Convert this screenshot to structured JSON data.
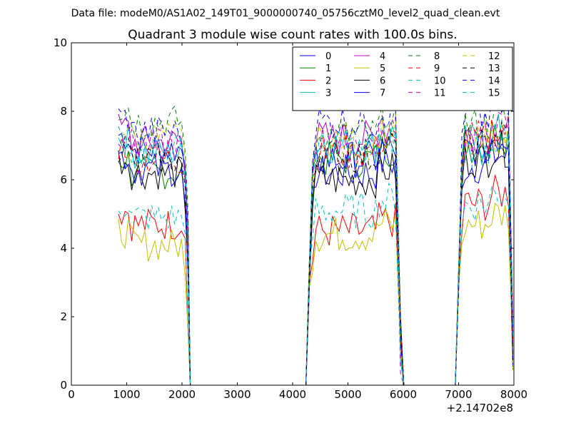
{
  "chart_data": {
    "type": "line",
    "suptitle": "Data file: modeM0/AS1A02_149T01_9000000740_05756cztM0_level2_quad_clean.evt",
    "title": "Quadrant 3 module wise count rates with 100.0s bins.",
    "xlabel": "",
    "ylabel": "",
    "xlim": [
      0,
      8000
    ],
    "ylim": [
      0,
      10
    ],
    "x_offset_label": "+2.14702e8",
    "x_ticks": [
      0,
      1000,
      2000,
      3000,
      4000,
      5000,
      6000,
      7000,
      8000
    ],
    "x_tick_labels": [
      "0",
      "1000",
      "2000",
      "3000",
      "4000",
      "5000",
      "6000",
      "7000",
      "8000"
    ],
    "y_ticks": [
      0,
      2,
      4,
      6,
      8,
      10
    ],
    "y_tick_labels": [
      "0",
      "2",
      "4",
      "6",
      "8",
      "10"
    ],
    "legend_position": "top-right",
    "segments": [
      {
        "start": 850,
        "end": 2150
      },
      {
        "start": 4300,
        "end": 5950
      },
      {
        "start": 7000,
        "end": 7980
      }
    ],
    "series": [
      {
        "name": "0",
        "color": "#0000ff",
        "style": "solid",
        "levels": [
          6.9,
          6.2,
          6.4
        ]
      },
      {
        "name": "1",
        "color": "#008000",
        "style": "solid",
        "levels": [
          6.2,
          6.6,
          7.0
        ]
      },
      {
        "name": "2",
        "color": "#ff0000",
        "style": "solid",
        "levels": [
          4.7,
          4.5,
          5.3
        ]
      },
      {
        "name": "3",
        "color": "#00bfbf",
        "style": "solid",
        "levels": [
          6.8,
          7.0,
          7.1
        ]
      },
      {
        "name": "4",
        "color": "#bf00bf",
        "style": "solid",
        "levels": [
          7.1,
          7.2,
          7.3
        ]
      },
      {
        "name": "5",
        "color": "#bfbf00",
        "style": "solid",
        "levels": [
          4.1,
          4.4,
          4.7
        ]
      },
      {
        "name": "6",
        "color": "#000000",
        "style": "solid",
        "levels": [
          6.2,
          6.0,
          6.6
        ]
      },
      {
        "name": "7",
        "color": "#0000ff",
        "style": "solid",
        "levels": [
          6.3,
          6.6,
          6.9
        ]
      },
      {
        "name": "8",
        "color": "#008000",
        "style": "dashed",
        "levels": [
          7.7,
          7.3,
          7.6
        ]
      },
      {
        "name": "9",
        "color": "#ff0000",
        "style": "dashed",
        "levels": [
          6.6,
          6.8,
          7.2
        ]
      },
      {
        "name": "10",
        "color": "#00bfbf",
        "style": "dashed",
        "levels": [
          4.9,
          5.1,
          5.3
        ]
      },
      {
        "name": "11",
        "color": "#bf00bf",
        "style": "dashed",
        "levels": [
          7.0,
          7.1,
          7.2
        ]
      },
      {
        "name": "12",
        "color": "#bfbf00",
        "style": "dashed",
        "levels": [
          7.2,
          7.1,
          7.0
        ]
      },
      {
        "name": "13",
        "color": "#000000",
        "style": "dashed",
        "levels": [
          6.6,
          6.7,
          7.0
        ]
      },
      {
        "name": "14",
        "color": "#0000ff",
        "style": "dashed",
        "levels": [
          7.4,
          7.7,
          7.8
        ]
      },
      {
        "name": "15",
        "color": "#00bfbf",
        "style": "dashed",
        "levels": [
          6.9,
          6.9,
          6.9
        ]
      }
    ]
  }
}
